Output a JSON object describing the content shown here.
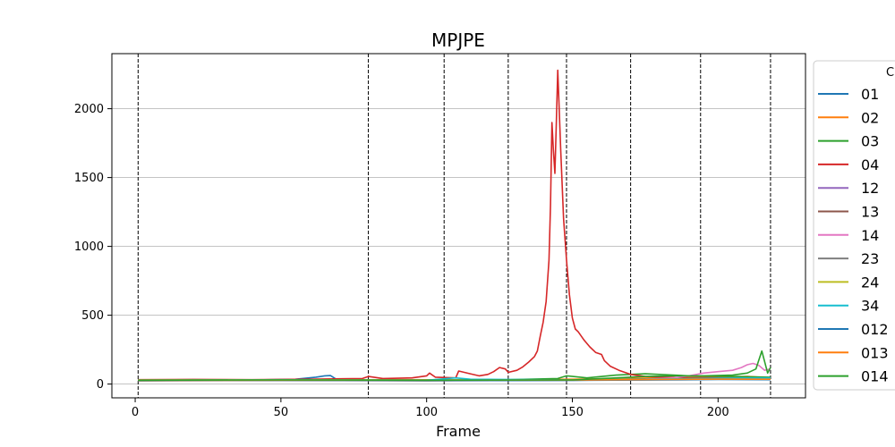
{
  "chart_data": {
    "type": "line",
    "title": "MPJPE",
    "xlabel": "Frame",
    "ylabel": "",
    "xlim": [
      -8,
      230
    ],
    "ylim": [
      -100,
      2400
    ],
    "xticks": [
      0,
      50,
      100,
      150,
      200
    ],
    "yticks": [
      0,
      500,
      1000,
      1500,
      2000
    ],
    "grid": "y-major",
    "vlines": [
      1,
      80,
      106,
      128,
      148,
      170,
      194,
      218
    ],
    "legend": {
      "placement": "right-outside",
      "title": "C"
    },
    "series": [
      {
        "name": "01",
        "color": "#1f77b4",
        "points": [
          [
            1,
            30
          ],
          [
            20,
            32
          ],
          [
            40,
            30
          ],
          [
            55,
            35
          ],
          [
            62,
            50
          ],
          [
            65,
            60
          ],
          [
            67,
            62
          ],
          [
            69,
            35
          ],
          [
            80,
            28
          ],
          [
            100,
            30
          ],
          [
            120,
            28
          ],
          [
            140,
            30
          ],
          [
            160,
            35
          ],
          [
            180,
            40
          ],
          [
            200,
            45
          ],
          [
            218,
            40
          ]
        ]
      },
      {
        "name": "02",
        "color": "#ff7f0e",
        "points": [
          [
            1,
            28
          ],
          [
            30,
            30
          ],
          [
            60,
            30
          ],
          [
            90,
            32
          ],
          [
            120,
            30
          ],
          [
            150,
            35
          ],
          [
            180,
            45
          ],
          [
            200,
            50
          ],
          [
            210,
            55
          ],
          [
            218,
            45
          ]
        ]
      },
      {
        "name": "03",
        "color": "#2ca02c",
        "points": [
          [
            1,
            25
          ],
          [
            40,
            28
          ],
          [
            80,
            30
          ],
          [
            120,
            28
          ],
          [
            145,
            40
          ],
          [
            148,
            60
          ],
          [
            155,
            45
          ],
          [
            165,
            65
          ],
          [
            175,
            75
          ],
          [
            190,
            60
          ],
          [
            205,
            55
          ],
          [
            218,
            50
          ]
        ]
      },
      {
        "name": "04",
        "color": "#d62728",
        "points": [
          [
            1,
            32
          ],
          [
            20,
            34
          ],
          [
            40,
            32
          ],
          [
            60,
            35
          ],
          [
            78,
            40
          ],
          [
            80,
            55
          ],
          [
            85,
            40
          ],
          [
            95,
            45
          ],
          [
            100,
            60
          ],
          [
            101,
            80
          ],
          [
            103,
            50
          ],
          [
            110,
            45
          ],
          [
            111,
            95
          ],
          [
            115,
            75
          ],
          [
            118,
            60
          ],
          [
            121,
            70
          ],
          [
            123,
            90
          ],
          [
            125,
            120
          ],
          [
            127,
            110
          ],
          [
            128,
            85
          ],
          [
            131,
            100
          ],
          [
            133,
            125
          ],
          [
            135,
            160
          ],
          [
            137,
            200
          ],
          [
            138,
            240
          ],
          [
            139,
            350
          ],
          [
            140,
            450
          ],
          [
            141,
            600
          ],
          [
            142,
            900
          ],
          [
            142.5,
            1300
          ],
          [
            143,
            1900
          ],
          [
            143.5,
            1700
          ],
          [
            144,
            1530
          ],
          [
            144.5,
            1900
          ],
          [
            145,
            2280
          ],
          [
            146,
            1700
          ],
          [
            147,
            1200
          ],
          [
            148,
            900
          ],
          [
            149,
            650
          ],
          [
            150,
            480
          ],
          [
            151,
            400
          ],
          [
            152,
            380
          ],
          [
            154,
            320
          ],
          [
            156,
            270
          ],
          [
            158,
            230
          ],
          [
            160,
            215
          ],
          [
            161,
            170
          ],
          [
            163,
            130
          ],
          [
            166,
            100
          ],
          [
            170,
            70
          ],
          [
            175,
            55
          ],
          [
            180,
            50
          ],
          [
            190,
            45
          ],
          [
            200,
            45
          ],
          [
            210,
            40
          ],
          [
            218,
            40
          ]
        ]
      },
      {
        "name": "12",
        "color": "#9467bd",
        "points": [
          [
            1,
            25
          ],
          [
            50,
            27
          ],
          [
            100,
            25
          ],
          [
            150,
            28
          ],
          [
            180,
            35
          ],
          [
            200,
            40
          ],
          [
            218,
            38
          ]
        ]
      },
      {
        "name": "13",
        "color": "#8c564b",
        "points": [
          [
            1,
            28
          ],
          [
            50,
            30
          ],
          [
            100,
            28
          ],
          [
            150,
            30
          ],
          [
            180,
            38
          ],
          [
            200,
            42
          ],
          [
            218,
            40
          ]
        ]
      },
      {
        "name": "14",
        "color": "#e377c2",
        "points": [
          [
            1,
            30
          ],
          [
            50,
            30
          ],
          [
            100,
            30
          ],
          [
            150,
            30
          ],
          [
            175,
            35
          ],
          [
            185,
            45
          ],
          [
            190,
            60
          ],
          [
            195,
            80
          ],
          [
            200,
            90
          ],
          [
            205,
            100
          ],
          [
            208,
            120
          ],
          [
            210,
            140
          ],
          [
            212,
            150
          ],
          [
            214,
            135
          ],
          [
            216,
            100
          ],
          [
            218,
            110
          ]
        ]
      },
      {
        "name": "23",
        "color": "#7f7f7f",
        "points": [
          [
            1,
            26
          ],
          [
            50,
            28
          ],
          [
            100,
            26
          ],
          [
            150,
            28
          ],
          [
            180,
            32
          ],
          [
            200,
            38
          ],
          [
            218,
            35
          ]
        ]
      },
      {
        "name": "24",
        "color": "#bcbd22",
        "points": [
          [
            1,
            29
          ],
          [
            50,
            31
          ],
          [
            100,
            29
          ],
          [
            150,
            31
          ],
          [
            180,
            36
          ],
          [
            200,
            40
          ],
          [
            218,
            38
          ]
        ]
      },
      {
        "name": "34",
        "color": "#17becf",
        "points": [
          [
            1,
            27
          ],
          [
            50,
            29
          ],
          [
            100,
            28
          ],
          [
            110,
            45
          ],
          [
            115,
            35
          ],
          [
            150,
            30
          ],
          [
            180,
            35
          ],
          [
            200,
            42
          ],
          [
            218,
            45
          ]
        ]
      },
      {
        "name": "012",
        "color": "#1f77b4",
        "points": [
          [
            1,
            24
          ],
          [
            50,
            26
          ],
          [
            100,
            24
          ],
          [
            150,
            27
          ],
          [
            180,
            30
          ],
          [
            200,
            33
          ],
          [
            218,
            32
          ]
        ]
      },
      {
        "name": "013",
        "color": "#ff7f0e",
        "points": [
          [
            1,
            26
          ],
          [
            50,
            28
          ],
          [
            100,
            27
          ],
          [
            150,
            29
          ],
          [
            180,
            33
          ],
          [
            200,
            36
          ],
          [
            218,
            35
          ]
        ]
      },
      {
        "name": "014",
        "color": "#2ca02c",
        "points": [
          [
            1,
            28
          ],
          [
            50,
            30
          ],
          [
            100,
            28
          ],
          [
            150,
            30
          ],
          [
            165,
            45
          ],
          [
            175,
            55
          ],
          [
            185,
            60
          ],
          [
            195,
            60
          ],
          [
            205,
            65
          ],
          [
            210,
            80
          ],
          [
            213,
            110
          ],
          [
            215,
            240
          ],
          [
            217,
            80
          ],
          [
            218,
            120
          ]
        ]
      }
    ]
  }
}
